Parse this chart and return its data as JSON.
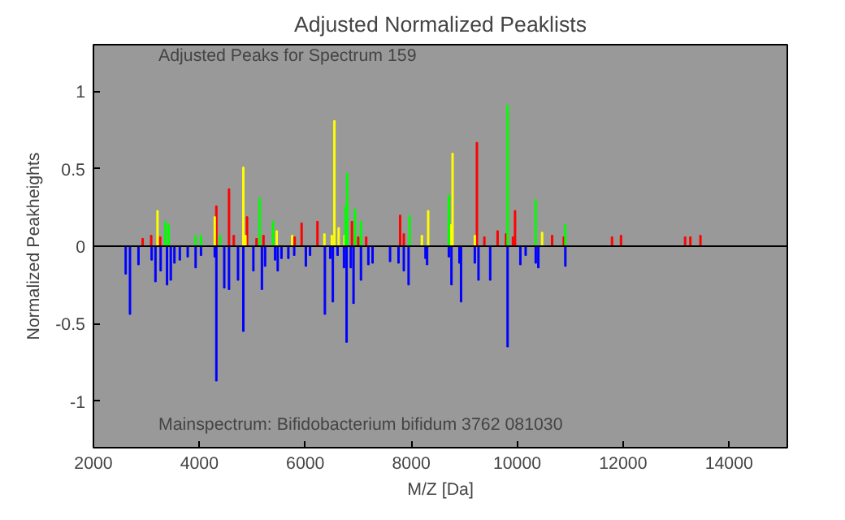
{
  "chart_data": {
    "type": "bar",
    "title": "Adjusted Normalized Peaklists",
    "xlabel": "M/Z [Da]",
    "ylabel": "Normalized Peakheights",
    "annotations": [
      "Adjusted Peaks for Spectrum 159",
      "Mainspectrum: Bifidobacterium bifidum 3762 081030"
    ],
    "xlim": [
      2000,
      15100
    ],
    "ylim": [
      -1.3,
      1.3
    ],
    "xticks": [
      2000,
      4000,
      6000,
      8000,
      10000,
      12000,
      14000
    ],
    "yticks": [
      -1,
      -0.5,
      0,
      0.5,
      1
    ],
    "grid": false,
    "ref_lines": [
      {
        "axis": "y",
        "value": 0,
        "color": "#000000"
      }
    ],
    "series": [
      {
        "color": "#ff0000",
        "x": [
          2930,
          3090,
          3260,
          4320,
          4560,
          4650,
          4900,
          5080,
          5210,
          5800,
          5930,
          6230,
          6880,
          7000,
          7150,
          7790,
          7860,
          9240,
          9380,
          9630,
          9790,
          9920,
          9960,
          10660,
          10880,
          11790,
          11960,
          13170,
          13270,
          13460
        ],
        "values": [
          0.05,
          0.07,
          0.06,
          0.26,
          0.37,
          0.07,
          0.19,
          0.05,
          0.07,
          0.06,
          0.15,
          0.16,
          0.16,
          0.06,
          0.06,
          0.2,
          0.08,
          0.67,
          0.06,
          0.1,
          0.08,
          0.06,
          0.23,
          0.07,
          0.06,
          0.06,
          0.07,
          0.06,
          0.06,
          0.07
        ]
      },
      {
        "color": "#ffff00",
        "x": [
          3210,
          4290,
          4830,
          4870,
          5460,
          5750,
          6360,
          6500,
          6550,
          6630,
          6740,
          8200,
          8320,
          8750,
          8780,
          9200,
          10470
        ],
        "values": [
          0.23,
          0.19,
          0.51,
          0.07,
          0.1,
          0.07,
          0.08,
          0.07,
          0.81,
          0.12,
          0.07,
          0.07,
          0.23,
          0.14,
          0.6,
          0.07,
          0.09
        ]
      },
      {
        "color": "#00ff00",
        "x": [
          3360,
          3420,
          3930,
          4030,
          4390,
          5140,
          5390,
          6760,
          6790,
          6940,
          7050,
          7970,
          8710,
          9820,
          10350,
          10910
        ],
        "values": [
          0.16,
          0.14,
          0.07,
          0.07,
          0.07,
          0.31,
          0.16,
          0.26,
          0.47,
          0.24,
          0.16,
          0.2,
          0.33,
          0.91,
          0.3,
          0.14
        ]
      },
      {
        "color": "#0000ff",
        "x": [
          2610,
          2690,
          2850,
          3100,
          3170,
          3270,
          3390,
          3460,
          3530,
          3630,
          3780,
          3930,
          4030,
          4290,
          4320,
          4470,
          4560,
          4730,
          4830,
          5020,
          5180,
          5240,
          5430,
          5480,
          5550,
          5680,
          5790,
          6010,
          6090,
          6370,
          6470,
          6520,
          6610,
          6730,
          6780,
          6860,
          6910,
          7050,
          7190,
          7270,
          7600,
          7760,
          7860,
          7950,
          8270,
          8300,
          8710,
          8760,
          8910,
          8940,
          9200,
          9270,
          9490,
          9820,
          10060,
          10160,
          10350,
          10400,
          10910
        ],
        "values": [
          -0.18,
          -0.44,
          -0.12,
          -0.09,
          -0.23,
          -0.16,
          -0.25,
          -0.22,
          -0.11,
          -0.09,
          -0.07,
          -0.14,
          -0.06,
          -0.07,
          -0.87,
          -0.27,
          -0.28,
          -0.22,
          -0.55,
          -0.16,
          -0.28,
          -0.13,
          -0.09,
          -0.16,
          -0.08,
          -0.08,
          -0.06,
          -0.13,
          -0.06,
          -0.44,
          -0.08,
          -0.36,
          -0.06,
          -0.14,
          -0.62,
          -0.14,
          -0.37,
          -0.22,
          -0.12,
          -0.11,
          -0.1,
          -0.11,
          -0.16,
          -0.25,
          -0.08,
          -0.12,
          -0.07,
          -0.25,
          -0.11,
          -0.36,
          -0.11,
          -0.22,
          -0.22,
          -0.65,
          -0.12,
          -0.06,
          -0.11,
          -0.14,
          -0.13
        ]
      }
    ]
  }
}
